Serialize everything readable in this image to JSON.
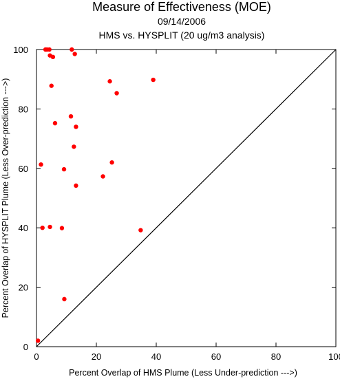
{
  "chart_data": {
    "type": "scatter",
    "title": "Measure of Effectiveness (MOE)",
    "subtitle_date": "09/14/2006",
    "subtitle_analysis": "HMS vs. HYSPLIT  (20 ug/m3 analysis)",
    "xlabel": "Percent Overlap of HMS Plume (Less Under-prediction --->)",
    "ylabel": "Percent Overlap of HYSPLIT Plume (Less Over-prediction --->)",
    "xlim": [
      0,
      100
    ],
    "ylim": [
      0,
      100
    ],
    "xticks": [
      0,
      20,
      40,
      60,
      80,
      100
    ],
    "yticks": [
      0,
      20,
      40,
      60,
      80,
      100
    ],
    "x_tick_labels": [
      "0",
      "20",
      "40",
      "60",
      "80",
      "100"
    ],
    "y_tick_labels": [
      "0",
      "20",
      "40",
      "60",
      "80",
      "100"
    ],
    "reference_line": "y = x",
    "grid": false,
    "point_color": "#ff0000",
    "line_color": "#000000",
    "points": [
      {
        "x": 3.0,
        "y": 100.0
      },
      {
        "x": 3.5,
        "y": 100.0
      },
      {
        "x": 4.3,
        "y": 100.0
      },
      {
        "x": 11.8,
        "y": 100.0
      },
      {
        "x": 12.8,
        "y": 98.5
      },
      {
        "x": 4.5,
        "y": 98.0
      },
      {
        "x": 5.5,
        "y": 97.5
      },
      {
        "x": 39.0,
        "y": 89.8
      },
      {
        "x": 24.5,
        "y": 89.3
      },
      {
        "x": 5.0,
        "y": 87.8
      },
      {
        "x": 26.8,
        "y": 85.3
      },
      {
        "x": 11.5,
        "y": 77.5
      },
      {
        "x": 6.2,
        "y": 75.2
      },
      {
        "x": 13.2,
        "y": 74.0
      },
      {
        "x": 12.5,
        "y": 67.3
      },
      {
        "x": 25.2,
        "y": 62.0
      },
      {
        "x": 1.5,
        "y": 61.3
      },
      {
        "x": 9.2,
        "y": 59.7
      },
      {
        "x": 22.2,
        "y": 57.3
      },
      {
        "x": 13.2,
        "y": 54.2
      },
      {
        "x": 2.0,
        "y": 40.0
      },
      {
        "x": 4.5,
        "y": 40.3
      },
      {
        "x": 8.5,
        "y": 39.9
      },
      {
        "x": 34.8,
        "y": 39.2
      },
      {
        "x": 9.3,
        "y": 16.0
      },
      {
        "x": 0.5,
        "y": 2.0
      }
    ]
  }
}
